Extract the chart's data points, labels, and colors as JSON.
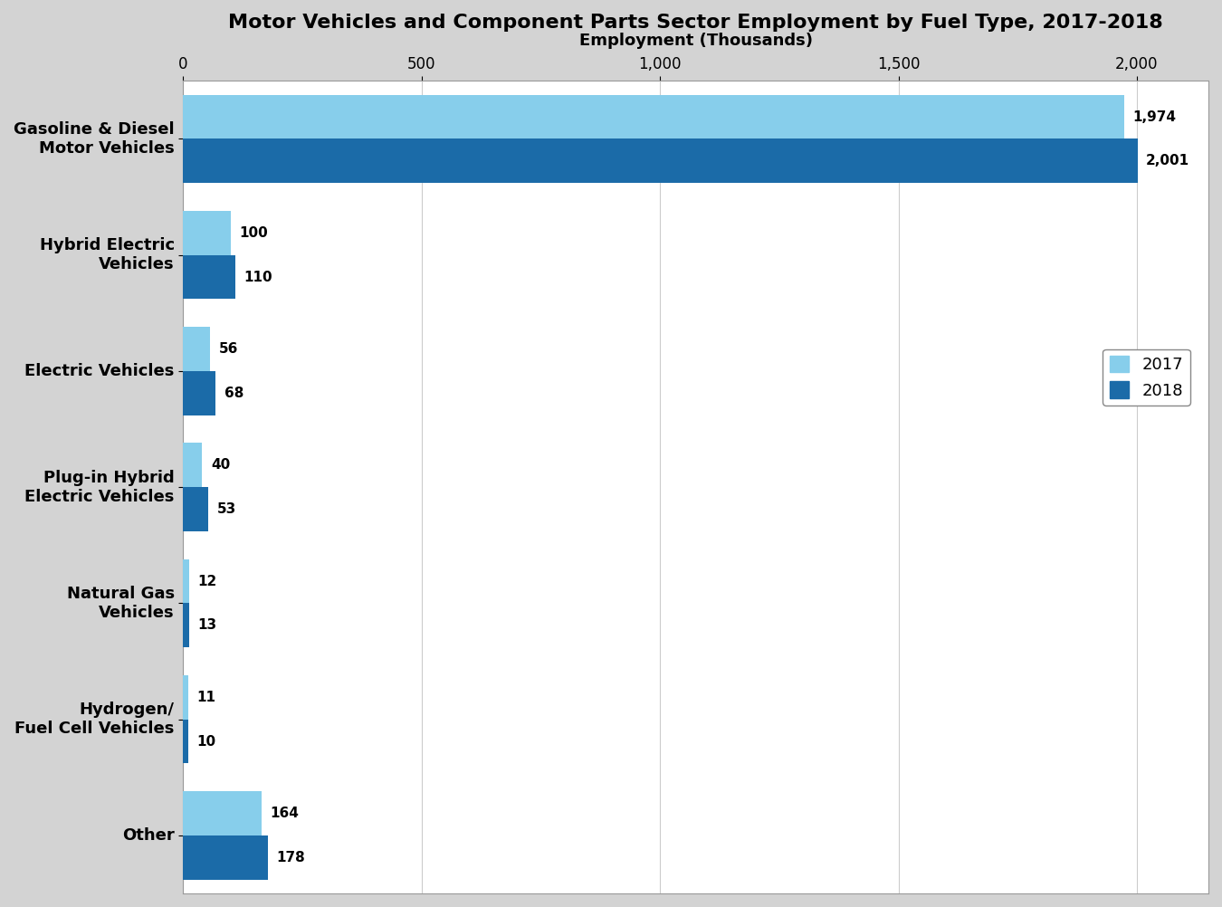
{
  "title": "Motor Vehicles and Component Parts Sector Employment by Fuel Type, 2017-2018",
  "xlabel": "Employment (Thousands)",
  "categories": [
    "Gasoline & Diesel\nMotor Vehicles",
    "Hybrid Electric\nVehicles",
    "Electric Vehicles",
    "Plug-in Hybrid\nElectric Vehicles",
    "Natural Gas\nVehicles",
    "Hydrogen/\nFuel Cell Vehicles",
    "Other"
  ],
  "values_2017": [
    1974,
    100,
    56,
    40,
    12,
    11,
    164
  ],
  "values_2018": [
    2001,
    110,
    68,
    53,
    13,
    10,
    178
  ],
  "color_2017": "#87CEEB",
  "color_2018": "#1B6BA8",
  "xlim": [
    0,
    2150
  ],
  "xticks": [
    0,
    500,
    1000,
    1500,
    2000
  ],
  "xticklabels": [
    "0",
    "500",
    "1,000",
    "1,500",
    "2,000"
  ],
  "bar_height": 0.38,
  "background_color": "#D3D3D3",
  "plot_background_color": "#FFFFFF",
  "legend_labels": [
    "2017",
    "2018"
  ],
  "title_fontsize": 16,
  "label_fontsize": 13,
  "tick_fontsize": 12,
  "value_fontsize": 11
}
